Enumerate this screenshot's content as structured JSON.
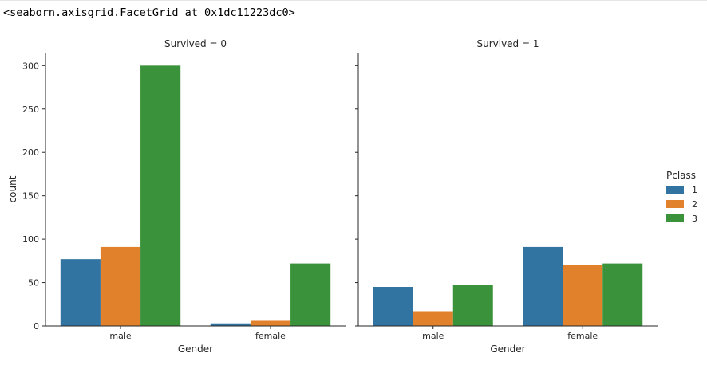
{
  "output_repr": "<seaborn.axisgrid.FacetGrid at 0x1dc11223dc0>",
  "chart_data": {
    "type": "bar",
    "facet_titles": [
      "Survived = 0",
      "Survived = 1"
    ],
    "categories": [
      "male",
      "female"
    ],
    "xlabel": "Gender",
    "ylabel": "count",
    "ylim": [
      0,
      315
    ],
    "yticks": [
      0,
      50,
      100,
      150,
      200,
      250,
      300
    ],
    "legend": {
      "title": "Pclass",
      "placement": "right",
      "entries": [
        "1",
        "2",
        "3"
      ]
    },
    "colors": [
      "#3274a1",
      "#e1812c",
      "#3a923a"
    ],
    "facets": [
      {
        "title": "Survived = 0",
        "series": [
          {
            "name": "1",
            "values": [
              77,
              3
            ]
          },
          {
            "name": "2",
            "values": [
              91,
              6
            ]
          },
          {
            "name": "3",
            "values": [
              300,
              72
            ]
          }
        ]
      },
      {
        "title": "Survived = 1",
        "series": [
          {
            "name": "1",
            "values": [
              45,
              91
            ]
          },
          {
            "name": "2",
            "values": [
              17,
              70
            ]
          },
          {
            "name": "3",
            "values": [
              47,
              72
            ]
          }
        ]
      }
    ]
  }
}
